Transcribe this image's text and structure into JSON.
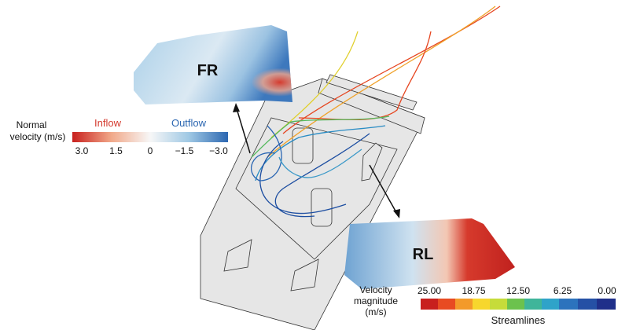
{
  "patches": {
    "front": {
      "label": "FR"
    },
    "rear": {
      "label": "RL"
    }
  },
  "normal_legend": {
    "title_lines": [
      "Normal",
      "velocity (m/s)"
    ],
    "inflow": "Inflow",
    "outflow": "Outflow",
    "ticks": [
      "3.0",
      "1.5",
      "0",
      "−1.5",
      "−3.0"
    ]
  },
  "velocity_legend": {
    "title_lines": [
      "Velocity",
      "magnitude",
      "(m/s)"
    ],
    "ticks": [
      "25.00",
      "18.75",
      "12.50",
      "6.25",
      "0.00"
    ],
    "caption": "Streamlines"
  }
}
